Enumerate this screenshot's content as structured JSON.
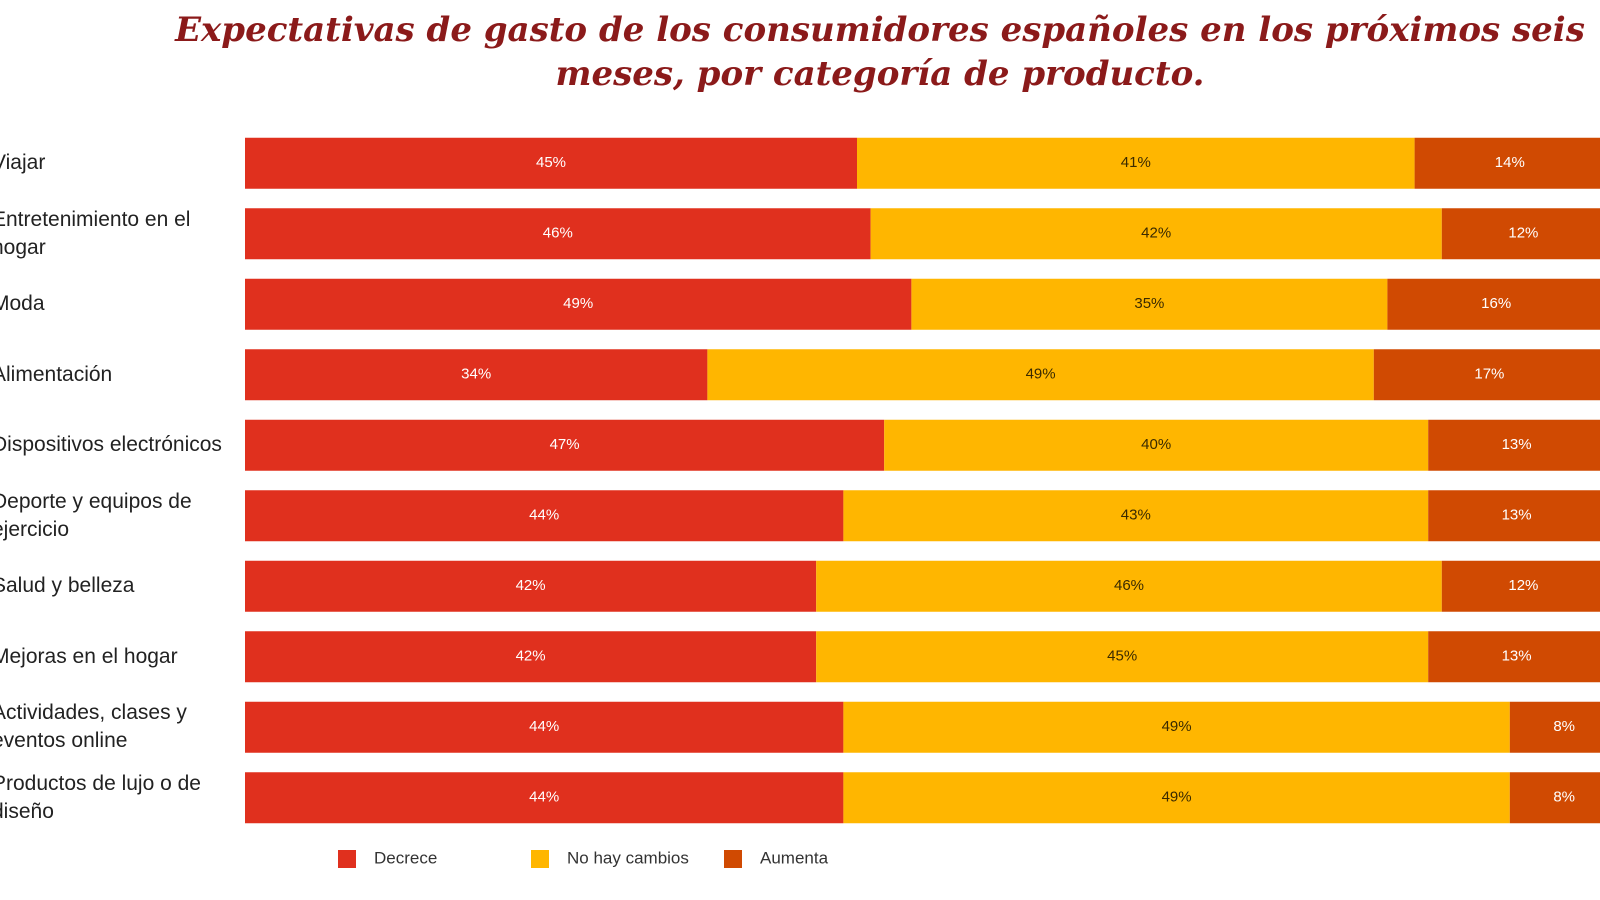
{
  "chart_data": {
    "type": "stacked-barh",
    "title": "Expectativas de gasto de los consumidores españoles en los próximos seis meses, por categoría de producto.",
    "categories": [
      "Viajar",
      "Entretenimiento en el hogar",
      "Moda",
      "Alimentación",
      "Dispositivos electrónicos",
      "Deporte y equipos de ejercicio",
      "Salud y belleza",
      "Mejoras en el hogar",
      "Actividades, clases y eventos online",
      "Productos de lujo o de diseño"
    ],
    "xlim": [
      0,
      100
    ],
    "series": [
      {
        "name": "Decrece",
        "color": "#e0301e",
        "label_color": "#ffffff",
        "values": [
          45,
          46,
          49,
          34,
          47,
          44,
          42,
          42,
          44,
          44
        ],
        "value_labels": [
          "45%",
          "46%",
          "49%",
          "34%",
          "47%",
          "44%",
          "42%",
          "42%",
          "44%",
          "44%"
        ]
      },
      {
        "name": "No hay cambios",
        "color": "#ffb600",
        "label_color": "#3a2a00",
        "values": [
          41,
          42,
          35,
          49,
          40,
          43,
          46,
          45,
          49,
          49
        ],
        "value_labels": [
          "41%",
          "42%",
          "35%",
          "49%",
          "40%",
          "43%",
          "46%",
          "45%",
          "49%",
          "49%"
        ]
      },
      {
        "name": "Aumenta",
        "color": "#d04a02",
        "label_color": "#ffffff",
        "values": [
          14,
          12,
          16,
          17,
          13,
          13,
          12,
          13,
          8,
          8
        ],
        "value_labels": [
          "14%",
          "12%",
          "16%",
          "17%",
          "13%",
          "13%",
          "12%",
          "13%",
          "8%",
          "8%"
        ]
      }
    ]
  }
}
